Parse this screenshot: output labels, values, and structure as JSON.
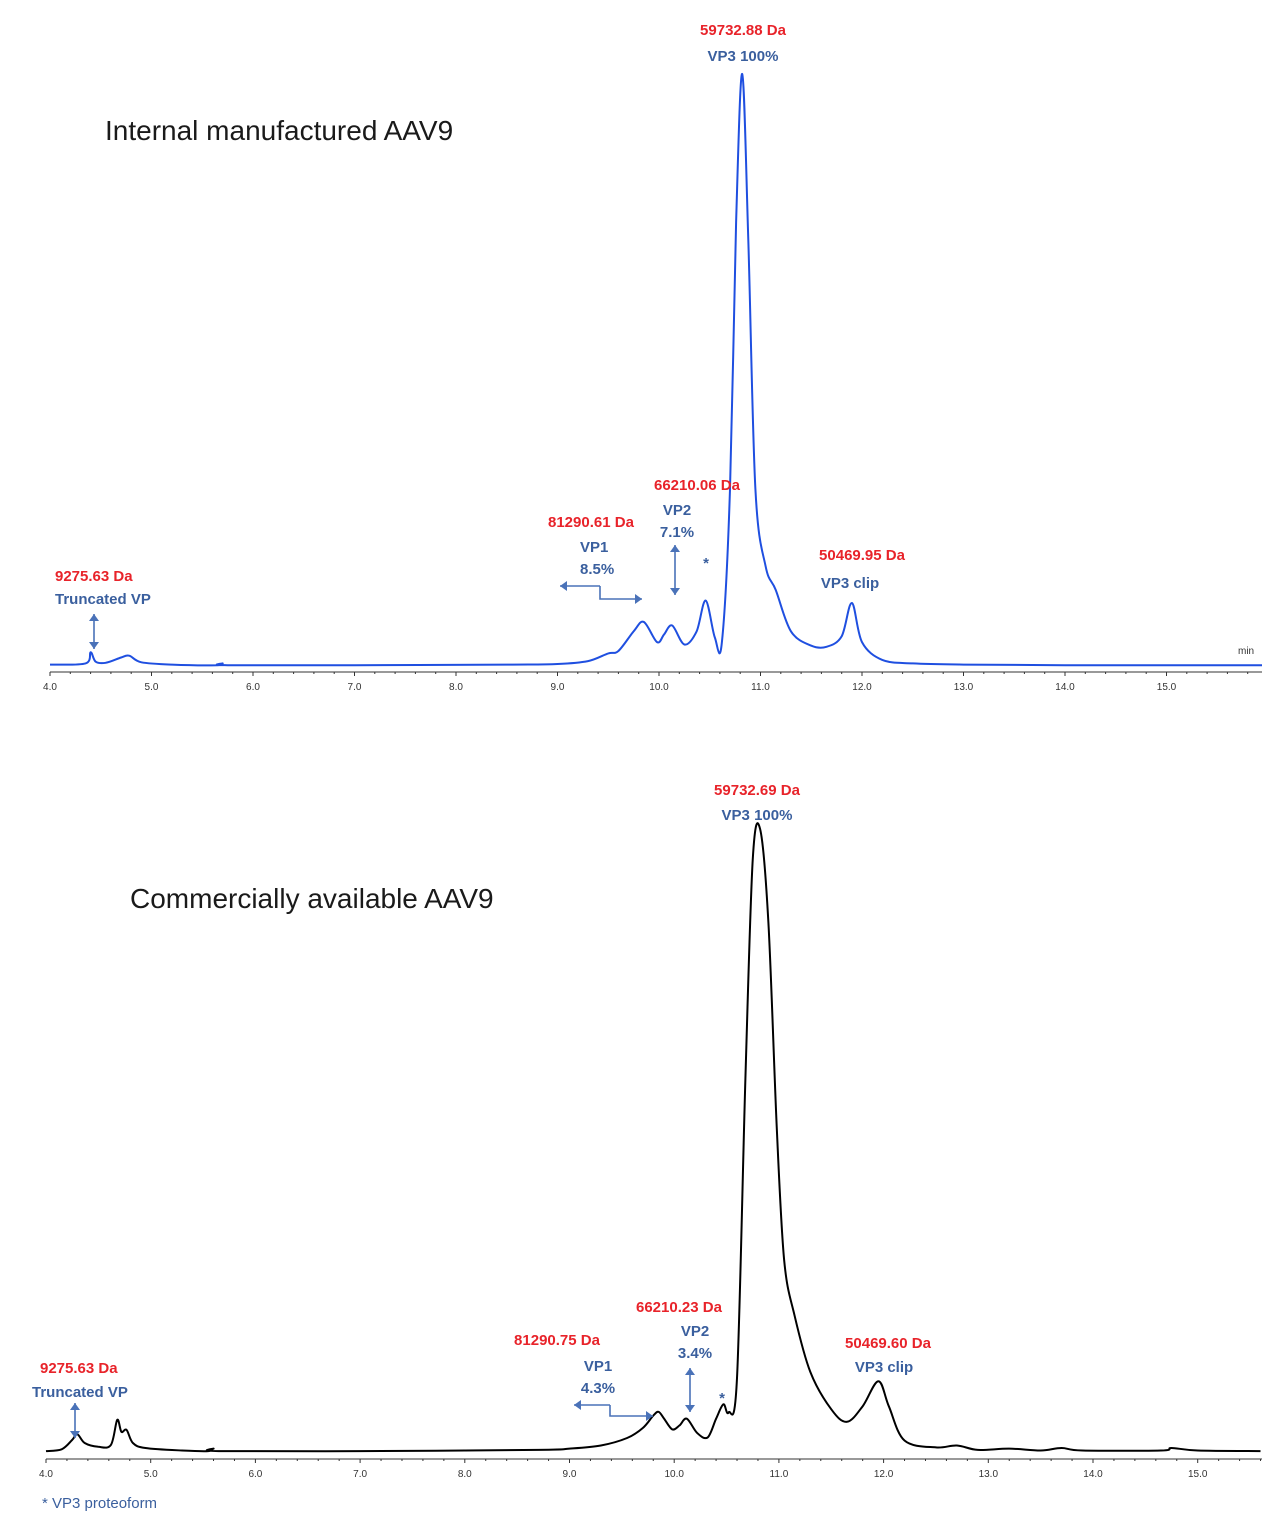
{
  "footnote": "* VP3 proteoform",
  "chart_data": [
    {
      "type": "line",
      "title": "Internal manufactured AAV9",
      "x_unit": "min",
      "color": "#1f4fe0",
      "xlim": [
        4.0,
        16.0
      ],
      "ylim": [
        0,
        100
      ],
      "grid": false,
      "x_ticks": [
        "4.0",
        "5.0",
        "6.0",
        "7.0",
        "8.0",
        "9.0",
        "10.0",
        "11.0",
        "12.0",
        "13.0",
        "14.0",
        "15.0",
        "16.0"
      ],
      "trace": {
        "x": [
          4.0,
          4.35,
          4.4,
          4.45,
          4.55,
          4.7,
          4.78,
          4.9,
          5.2,
          5.65,
          5.7,
          5.75,
          7.0,
          8.5,
          9.0,
          9.3,
          9.5,
          9.6,
          9.75,
          9.85,
          9.98,
          10.05,
          10.13,
          10.25,
          10.37,
          10.46,
          10.55,
          10.62,
          10.7,
          10.76,
          10.82,
          10.88,
          10.95,
          11.05,
          11.15,
          11.3,
          11.5,
          11.65,
          11.8,
          11.9,
          12.0,
          12.2,
          12.5,
          13.0,
          14.0,
          16.0
        ],
        "y": [
          0.4,
          0.6,
          2.5,
          0.9,
          0.7,
          1.6,
          1.9,
          0.8,
          0.4,
          0.3,
          0.6,
          0.3,
          0.3,
          0.4,
          0.5,
          1.0,
          2.3,
          2.7,
          6.0,
          7.6,
          4.2,
          5.5,
          7.0,
          3.8,
          6.0,
          11.2,
          5.0,
          4.2,
          30.0,
          75.0,
          100.0,
          72.0,
          30.0,
          17.0,
          13.0,
          6.0,
          3.6,
          3.4,
          5.2,
          10.8,
          4.2,
          1.2,
          0.6,
          0.4,
          0.3,
          0.3
        ]
      },
      "annotations": [
        {
          "x": 4.42,
          "mass": "9275.63 Da",
          "label": [
            "Truncated VP"
          ]
        },
        {
          "x": 9.85,
          "mass": "81290.61 Da",
          "label": [
            "VP1",
            "8.5%"
          ]
        },
        {
          "x": 10.13,
          "mass": "66210.06 Da",
          "label": [
            "VP2",
            "7.1%"
          ]
        },
        {
          "x": 10.46,
          "star": "*"
        },
        {
          "x": 10.82,
          "mass": "59732.88 Da",
          "label": [
            "VP3 100%"
          ]
        },
        {
          "x": 11.9,
          "mass": "50469.95 Da",
          "label": [
            "VP3 clip"
          ]
        }
      ]
    },
    {
      "type": "line",
      "title": "Commercially available AAV9",
      "color": "#000000",
      "xlim": [
        4.0,
        15.6
      ],
      "ylim": [
        0,
        100
      ],
      "grid": false,
      "x_ticks": [
        "4.0",
        "5.0",
        "6.0",
        "7.0",
        "8.0",
        "9.0",
        "10.0",
        "11.0",
        "12.0",
        "13.0",
        "14.0",
        "15.0"
      ],
      "trace": {
        "x": [
          4.0,
          4.15,
          4.25,
          4.3,
          4.37,
          4.5,
          4.62,
          4.68,
          4.72,
          4.77,
          4.83,
          4.95,
          5.3,
          5.55,
          5.6,
          5.65,
          7.0,
          8.7,
          9.0,
          9.3,
          9.55,
          9.7,
          9.8,
          9.85,
          9.9,
          9.98,
          10.05,
          10.12,
          10.22,
          10.32,
          10.4,
          10.47,
          10.52,
          10.6,
          10.68,
          10.75,
          10.82,
          10.9,
          10.98,
          11.05,
          11.15,
          11.3,
          11.5,
          11.65,
          11.8,
          11.95,
          12.05,
          12.2,
          12.5,
          12.7,
          12.9,
          13.2,
          13.5,
          13.7,
          13.9,
          14.65,
          14.75,
          15.0,
          15.6
        ],
        "y": [
          0.3,
          0.6,
          2.1,
          3.0,
          1.6,
          1.0,
          1.3,
          5.3,
          3.4,
          3.7,
          1.6,
          0.8,
          0.4,
          0.3,
          0.7,
          0.3,
          0.3,
          0.5,
          0.7,
          1.2,
          2.4,
          4.0,
          6.0,
          6.6,
          5.6,
          3.8,
          4.4,
          5.5,
          3.2,
          2.5,
          5.5,
          7.8,
          6.5,
          12.0,
          60.0,
          95.0,
          100.0,
          85.0,
          52.0,
          31.0,
          22.0,
          13.0,
          7.0,
          5.0,
          7.5,
          11.5,
          7.5,
          2.0,
          0.9,
          1.2,
          0.5,
          0.7,
          0.4,
          0.8,
          0.4,
          0.4,
          0.8,
          0.4,
          0.3
        ]
      },
      "annotations": [
        {
          "x": 4.25,
          "mass": "9275.63 Da",
          "label": [
            "Truncated VP"
          ]
        },
        {
          "x": 9.85,
          "mass": "81290.75 Da",
          "label": [
            "VP1",
            "4.3%"
          ]
        },
        {
          "x": 10.12,
          "mass": "66210.23 Da",
          "label": [
            "VP2",
            "3.4%"
          ]
        },
        {
          "x": 10.47,
          "star": "*"
        },
        {
          "x": 10.75,
          "mass": "59732.69 Da",
          "label": [
            "VP3 100%"
          ]
        },
        {
          "x": 11.95,
          "mass": "50469.60 Da",
          "label": [
            "VP3 clip"
          ]
        }
      ]
    }
  ]
}
